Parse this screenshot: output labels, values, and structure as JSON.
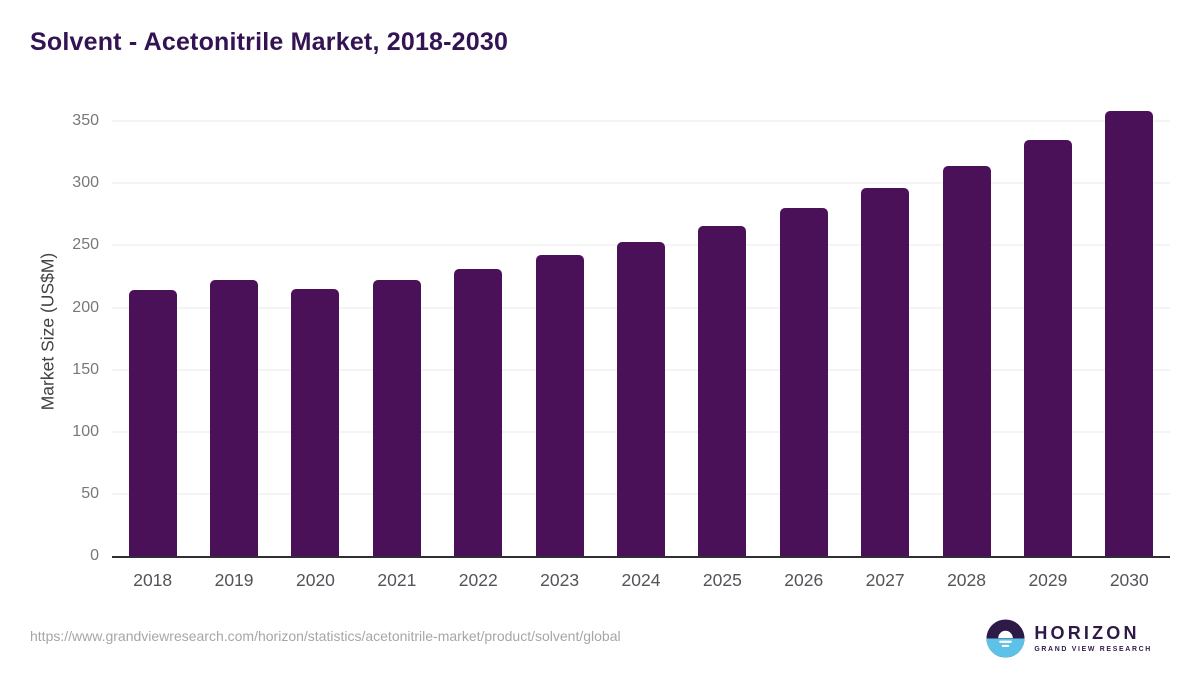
{
  "page": {
    "footer_url": "https://www.grandviewresearch.com/horizon/statistics/acetonitrile-market/product/solvent/global",
    "logo": {
      "name": "HORIZON",
      "tagline": "GRAND VIEW RESEARCH",
      "purple": "#2e1a47",
      "blue": "#5ec1e8"
    }
  },
  "chart_data": {
    "type": "bar",
    "title": "Solvent - Acetonitrile Market, 2018-2030",
    "ylabel": "Market Size (US$M)",
    "xlabel": "",
    "categories": [
      "2018",
      "2019",
      "2020",
      "2021",
      "2022",
      "2023",
      "2024",
      "2025",
      "2026",
      "2027",
      "2028",
      "2029",
      "2030"
    ],
    "values": [
      214,
      222,
      215,
      222,
      231,
      242,
      253,
      266,
      280,
      296,
      314,
      335,
      358
    ],
    "yticks": [
      0,
      50,
      100,
      150,
      200,
      250,
      300,
      350
    ],
    "ylim": [
      0,
      363
    ],
    "grid": "horizontal",
    "legend": "none",
    "bar_color": "#4a1158",
    "title_color": "#331353",
    "axis_line_color": "#2f2f35",
    "gridline_color": "#e9e9eb"
  }
}
